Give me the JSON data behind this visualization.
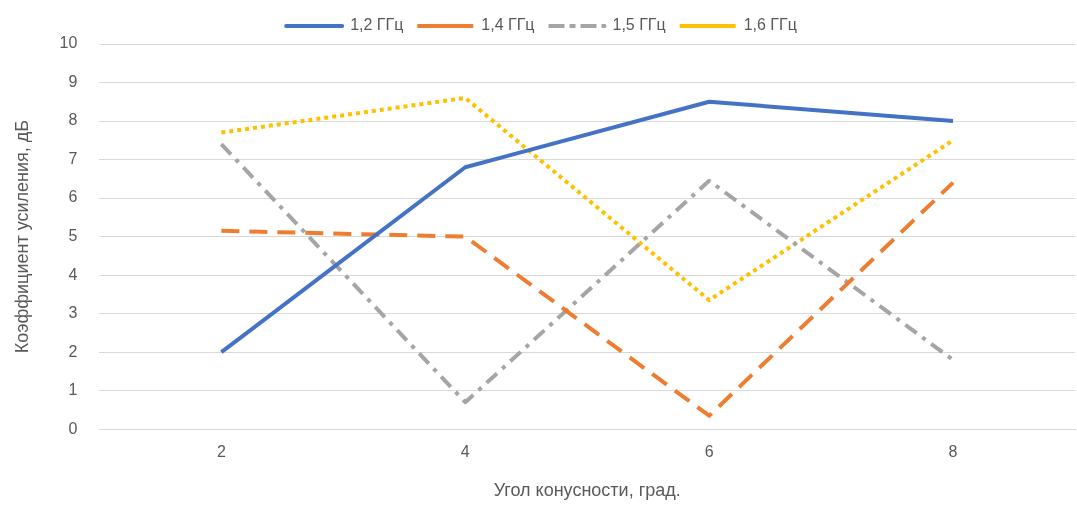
{
  "chart_data": {
    "type": "line",
    "xlabel": "Угол конусности, град.",
    "ylabel": "Коэффициент усиления, дБ",
    "categories": [
      "2",
      "4",
      "6",
      "8"
    ],
    "series": [
      {
        "name": "1,2 ГГц",
        "color": "#4472c4",
        "line_style": "solid",
        "values": [
          2.0,
          6.8,
          8.5,
          8.0
        ]
      },
      {
        "name": "1,4 ГГц",
        "color": "#ed7d31",
        "line_style": "dashed",
        "values": [
          5.15,
          5.0,
          0.35,
          6.4
        ]
      },
      {
        "name": "1,5 ГГц",
        "color": "#a5a5a5",
        "line_style": "dashdot",
        "values": [
          7.4,
          0.7,
          6.45,
          1.8
        ]
      },
      {
        "name": "1,6 ГГц",
        "color": "#ffc000",
        "line_style": "dotted",
        "values": [
          7.7,
          8.6,
          3.35,
          7.5
        ]
      }
    ],
    "ylim": [
      0,
      10
    ],
    "yticks": [
      0,
      1,
      2,
      3,
      4,
      5,
      6,
      7,
      8,
      9,
      10
    ],
    "grid": "y",
    "legend": "top",
    "marker": "none"
  }
}
